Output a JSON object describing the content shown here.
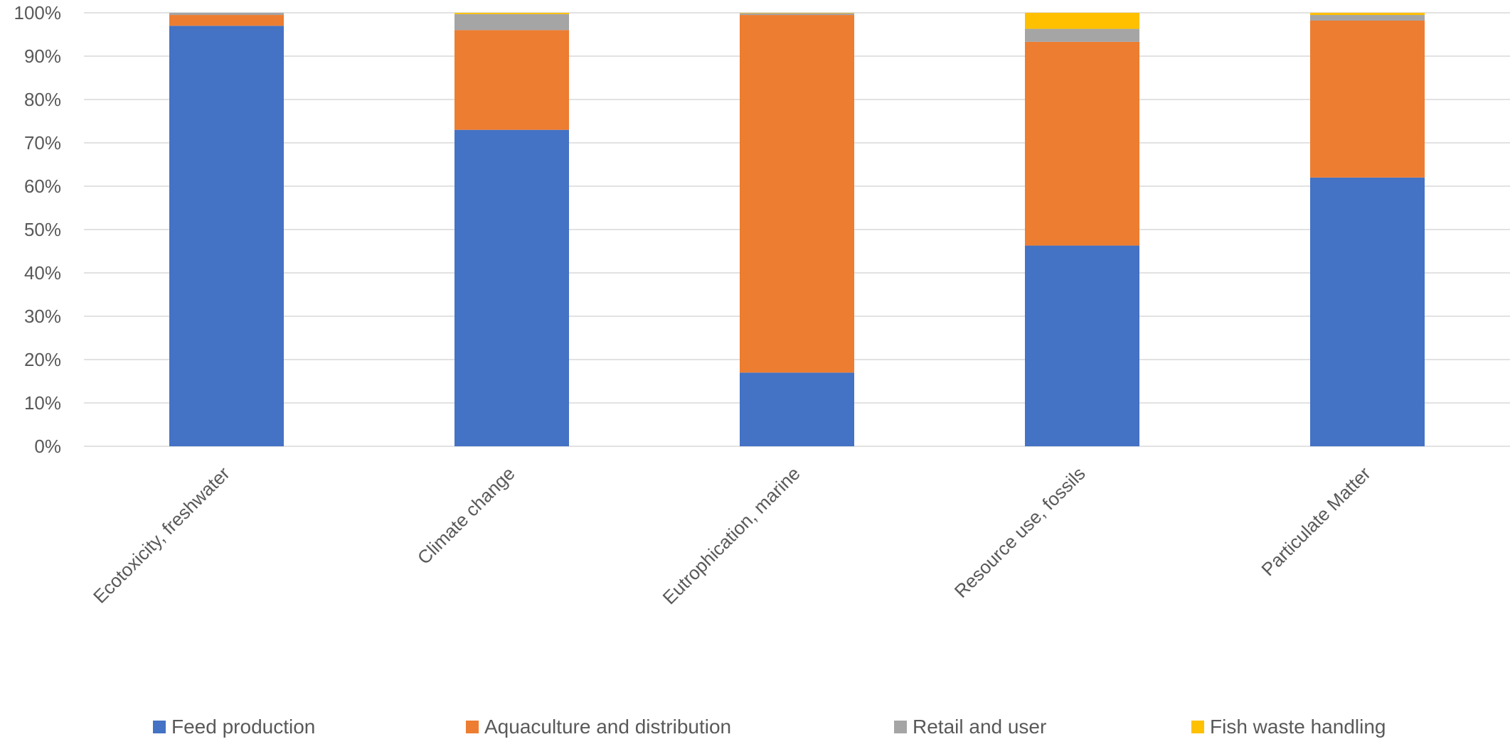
{
  "chart_data": {
    "type": "bar",
    "stacked": true,
    "percent": true,
    "categories": [
      "Ecotoxicity, freshwater",
      "Climate change",
      "Eutrophication, marine",
      "Resource use, fossils",
      "Particulate Matter"
    ],
    "series": [
      {
        "name": "Feed production",
        "values": [
          97.0,
          73.0,
          17.0,
          46.3,
          62.0
        ]
      },
      {
        "name": "Aquaculture and distribution",
        "values": [
          2.5,
          23.0,
          82.5,
          47.0,
          36.2
        ]
      },
      {
        "name": "Retail and user",
        "values": [
          0.5,
          3.7,
          0.4,
          3.0,
          1.3
        ]
      },
      {
        "name": "Fish waste handling",
        "values": [
          0.0,
          0.3,
          0.1,
          3.7,
          0.5
        ]
      }
    ],
    "ylim": [
      0,
      100
    ],
    "yticks": [
      "0%",
      "10%",
      "20%",
      "30%",
      "40%",
      "50%",
      "60%",
      "70%",
      "80%",
      "90%",
      "100%"
    ],
    "grid": true,
    "legend_position": "bottom",
    "colors": [
      "#4472C4",
      "#ED7D31",
      "#A5A5A5",
      "#FFC000"
    ]
  }
}
